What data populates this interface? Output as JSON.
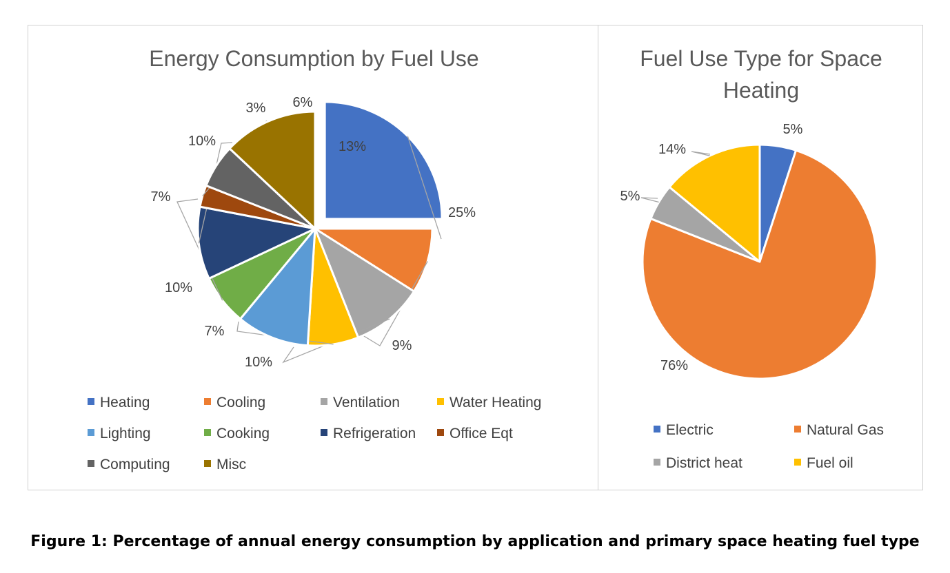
{
  "caption": "Figure 1: Percentage of annual energy consumption by application and primary space heating fuel type",
  "chart_data": [
    {
      "type": "pie",
      "title": "Energy Consumption by Fuel Use",
      "labels": [
        "Heating",
        "Cooling",
        "Ventilation",
        "Water Heating",
        "Lighting",
        "Cooking",
        "Refrigeration",
        "Office Eqt",
        "Computing",
        "Misc"
      ],
      "values": [
        25,
        9,
        10,
        7,
        10,
        7,
        10,
        3,
        6,
        13
      ],
      "data_labels": [
        "25%",
        "9%",
        "10%",
        "7%",
        "10%",
        "7%",
        "10%",
        "3%",
        "6%",
        "13%"
      ],
      "colors": [
        "#4472c4",
        "#ed7d31",
        "#a5a5a5",
        "#ffc000",
        "#5b9bd5",
        "#70ad47",
        "#264478",
        "#9e480e",
        "#636363",
        "#997300"
      ],
      "exploded": [
        "Heating"
      ],
      "legend_position": "bottom"
    },
    {
      "type": "pie",
      "title": "Fuel Use Type for Space Heating",
      "labels": [
        "Electric",
        "Natural Gas",
        "District heat",
        "Fuel oil"
      ],
      "values": [
        5,
        76,
        5,
        14
      ],
      "data_labels": [
        "5%",
        "76%",
        "5%",
        "14%"
      ],
      "colors": [
        "#4472c4",
        "#ed7d31",
        "#a5a5a5",
        "#ffc000"
      ],
      "legend_position": "bottom"
    }
  ]
}
